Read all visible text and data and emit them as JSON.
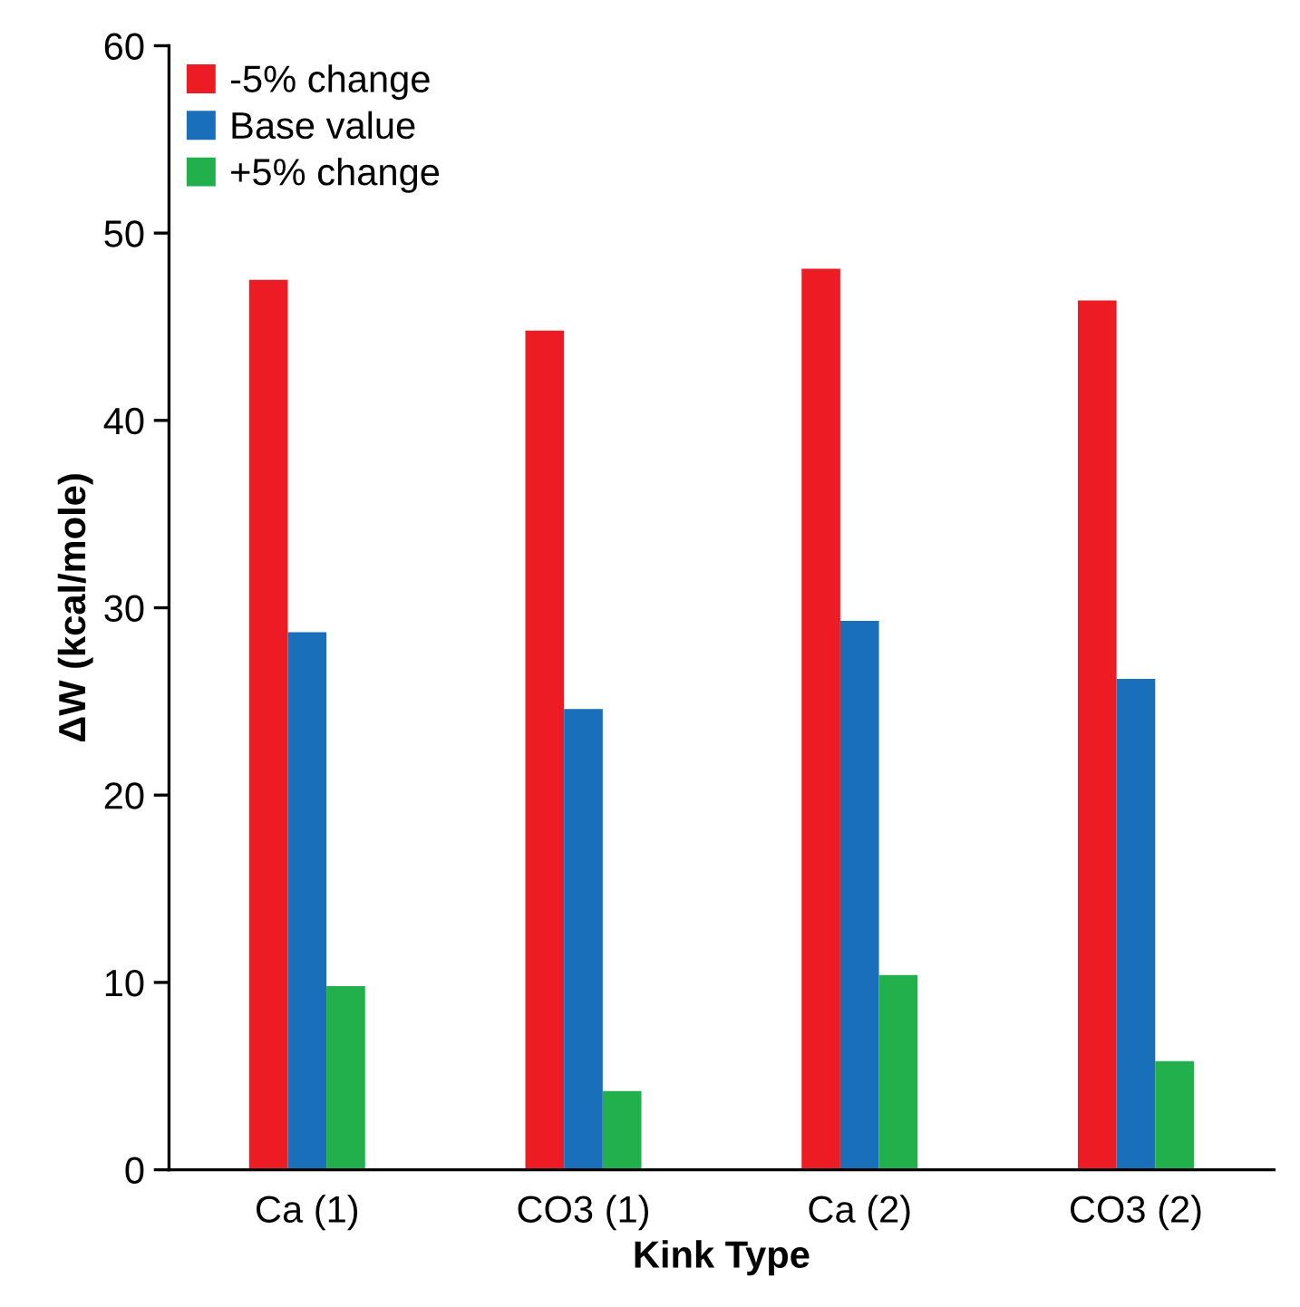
{
  "chart_data": {
    "type": "bar",
    "xlabel": "Kink Type",
    "ylabel": "ΔW (kcal/mole)",
    "categories": [
      "Ca (1)",
      "CO3 (1)",
      "Ca (2)",
      "CO3 (2)"
    ],
    "series": [
      {
        "name": "-5% change",
        "color": "#ed1c24",
        "values": [
          47.5,
          44.8,
          48.1,
          46.4
        ]
      },
      {
        "name": "Base value",
        "color": "#1a6fba",
        "values": [
          28.7,
          24.6,
          29.3,
          26.2
        ]
      },
      {
        "name": "+5% change",
        "color": "#21b04b",
        "values": [
          9.8,
          4.2,
          10.4,
          5.8
        ]
      }
    ],
    "ylim": [
      0,
      60
    ],
    "yticks": [
      0,
      10,
      20,
      30,
      40,
      50,
      60
    ],
    "grid": false,
    "legend": "top left"
  }
}
